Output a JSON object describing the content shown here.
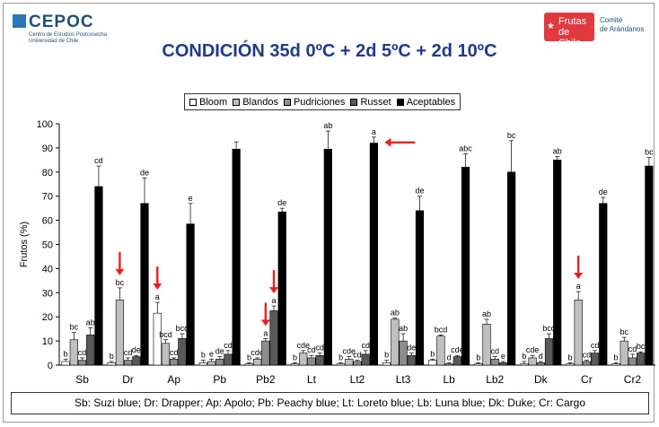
{
  "header": {
    "left_logo_text": "CEPOC",
    "left_logo_sub1": "Centro de Estudios Postcosecha",
    "left_logo_sub2": "Universidad de Chile",
    "right_logo_text1": "Frutas",
    "right_logo_text2": "de Chile",
    "right_logo_comite1": "Comité",
    "right_logo_comite2": "de Arándanos"
  },
  "colors": {
    "Bloom": "#ffffff",
    "Blandos": "#bfbfbf",
    "Pudriciones": "#8c8c8c",
    "Russet": "#595959",
    "Aceptables": "#000000",
    "arrow": "#e8231f",
    "title": "#1f3b8a"
  },
  "chart_data": {
    "type": "bar",
    "title": "CONDICIÓN  35d 0ºC + 2d 5ºC + 2d 10ºC",
    "xlabel": "",
    "ylabel": "Frutos (%)",
    "ylim": [
      0,
      100
    ],
    "yticks": [
      0,
      10,
      20,
      30,
      40,
      50,
      60,
      70,
      80,
      90,
      100
    ],
    "legend_position": "top-center",
    "grid": false,
    "categories": [
      "Sb",
      "Dr",
      "Ap",
      "Pb",
      "Pb2",
      "Lt",
      "Lt2",
      "Lt3",
      "Lb",
      "Lb2",
      "Dk",
      "Cr",
      "Cr2"
    ],
    "series": [
      {
        "name": "Bloom",
        "values": [
          1.5,
          1,
          21.5,
          1,
          0.5,
          0.5,
          0.5,
          1,
          2,
          0.5,
          0.5,
          0.5,
          0.5
        ],
        "errors": [
          1,
          0.5,
          4.5,
          1,
          0.5,
          0.5,
          0.5,
          1,
          0.5,
          0.5,
          1,
          0.5,
          0.5
        ],
        "labels": [
          "b",
          "b",
          "a",
          "b",
          "b",
          "b",
          "b",
          "b",
          "b",
          "b",
          "b",
          "b",
          "b"
        ]
      },
      {
        "name": "Blandos",
        "values": [
          10.5,
          27,
          9,
          1.5,
          2.5,
          5,
          2.5,
          19,
          12,
          17,
          3,
          27,
          10
        ],
        "errors": [
          3,
          5,
          1.5,
          1,
          0.5,
          1,
          1,
          0.5,
          0.5,
          2,
          1,
          3.5,
          1.5
        ],
        "labels": [
          "bc",
          "bc",
          "bcd",
          "e",
          "cde",
          "cde",
          "cde",
          "ab",
          "bcd",
          "ab",
          "cde",
          "a",
          "bc"
        ]
      },
      {
        "name": "Pudriciones",
        "values": [
          2,
          2,
          2.5,
          2.5,
          10,
          3,
          1.5,
          10,
          0.5,
          2.5,
          1,
          1.5,
          3
        ],
        "errors": [
          1,
          1,
          0.5,
          1,
          1,
          1,
          0.5,
          3,
          0.5,
          1,
          0.5,
          0.5,
          1.5
        ],
        "labels": [
          "cd",
          "cd",
          "cd",
          "de",
          "a",
          "cd",
          "cd",
          "ab",
          "d",
          "cd",
          "d",
          "cd",
          "cd"
        ]
      },
      {
        "name": "Russet",
        "values": [
          12.5,
          3.5,
          11,
          4.5,
          22.5,
          4,
          4.5,
          4,
          3.5,
          1,
          11,
          5,
          5
        ],
        "errors": [
          3,
          0.5,
          2,
          1.5,
          2,
          1,
          1.5,
          1,
          0.5,
          0.5,
          2,
          1,
          0.5
        ],
        "labels": [
          "ab",
          "de",
          "bcd",
          "cd",
          "a",
          "cd",
          "cd",
          "de",
          "cde",
          "e",
          "bcd",
          "cd",
          "bc"
        ]
      },
      {
        "name": "Aceptables",
        "values": [
          74,
          67,
          58.5,
          89.5,
          63.5,
          89.5,
          92,
          64,
          82,
          80,
          85,
          67,
          82.5
        ],
        "errors": [
          8.5,
          10.5,
          8.5,
          3,
          1.5,
          7.5,
          2.5,
          6,
          5.5,
          13,
          1.5,
          2.5,
          3.5
        ],
        "labels": [
          "cd",
          "de",
          "e",
          "",
          "de",
          "ab",
          "a",
          "de",
          "abc",
          "bc",
          "ab",
          "de",
          "bc"
        ]
      }
    ],
    "annotations": [
      {
        "type": "arrow-down",
        "category": "Dr",
        "series": "Blandos"
      },
      {
        "type": "arrow-down",
        "category": "Ap",
        "series": "Bloom"
      },
      {
        "type": "arrow-down",
        "category": "Pb2",
        "series": "Pudriciones"
      },
      {
        "type": "arrow-down",
        "category": "Pb2",
        "series": "Russet"
      },
      {
        "type": "arrow-left",
        "category": "Lt2",
        "series": "Aceptables"
      },
      {
        "type": "arrow-down",
        "category": "Cr",
        "series": "Blandos"
      }
    ]
  },
  "footer": {
    "text": "Sb: Suzi blue; Dr: Drapper; Ap: Apolo; Pb: Peachy blue; Lt: Loreto blue; Lb: Luna blue; Dk: Duke; Cr: Cargo"
  }
}
